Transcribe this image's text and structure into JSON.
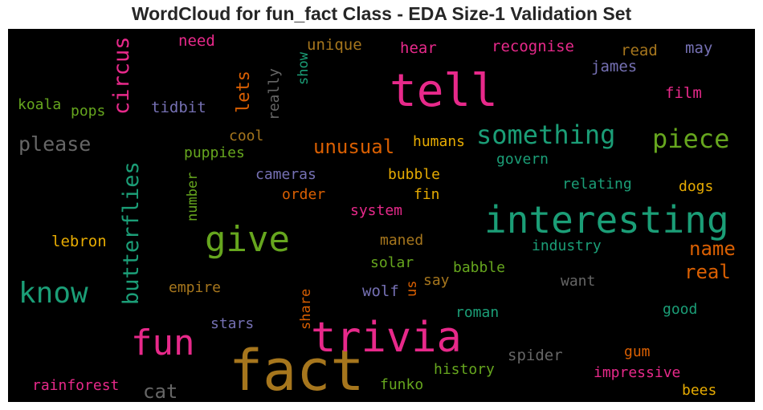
{
  "chart_data": {
    "type": "wordcloud",
    "title": "WordCloud for fun_fact Class - EDA Size-1 Validation Set",
    "background": "#000000",
    "palette": {
      "teal": "#1b9e77",
      "orange": "#d95f02",
      "purple": "#7570b3",
      "pink": "#e7298a",
      "green": "#66a61e",
      "gold": "#e6ab02",
      "brown": "#a6761d",
      "gray": "#666666"
    },
    "words": [
      {
        "text": "fact",
        "color": "#a6761d",
        "orientation": "horizontal"
      },
      {
        "text": "interesting",
        "color": "#1b9e77",
        "orientation": "horizontal"
      },
      {
        "text": "trivia",
        "color": "#e7298a",
        "orientation": "horizontal"
      },
      {
        "text": "tell",
        "color": "#e7298a",
        "orientation": "horizontal"
      },
      {
        "text": "give",
        "color": "#66a61e",
        "orientation": "horizontal"
      },
      {
        "text": "fun",
        "color": "#e7298a",
        "orientation": "horizontal"
      },
      {
        "text": "know",
        "color": "#1b9e77",
        "orientation": "horizontal"
      },
      {
        "text": "something",
        "color": "#1b9e77",
        "orientation": "horizontal"
      },
      {
        "text": "piece",
        "color": "#66a61e",
        "orientation": "horizontal"
      },
      {
        "text": "butterflies",
        "color": "#1b9e77",
        "orientation": "vertical"
      },
      {
        "text": "circus",
        "color": "#e7298a",
        "orientation": "vertical"
      },
      {
        "text": "unusual",
        "color": "#d95f02",
        "orientation": "horizontal"
      },
      {
        "text": "please",
        "color": "#666666",
        "orientation": "horizontal"
      },
      {
        "text": "name",
        "color": "#d95f02",
        "orientation": "horizontal"
      },
      {
        "text": "real",
        "color": "#d95f02",
        "orientation": "horizontal"
      },
      {
        "text": "lets",
        "color": "#d95f02",
        "orientation": "vertical"
      },
      {
        "text": "cat",
        "color": "#666666",
        "orientation": "horizontal"
      },
      {
        "text": "recognise",
        "color": "#e7298a",
        "orientation": "horizontal"
      },
      {
        "text": "unique",
        "color": "#a6761d",
        "orientation": "horizontal"
      },
      {
        "text": "hear",
        "color": "#e7298a",
        "orientation": "horizontal"
      },
      {
        "text": "need",
        "color": "#e7298a",
        "orientation": "horizontal"
      },
      {
        "text": "read",
        "color": "#a6761d",
        "orientation": "horizontal"
      },
      {
        "text": "may",
        "color": "#7570b3",
        "orientation": "horizontal"
      },
      {
        "text": "james",
        "color": "#7570b3",
        "orientation": "horizontal"
      },
      {
        "text": "film",
        "color": "#e7298a",
        "orientation": "horizontal"
      },
      {
        "text": "koala",
        "color": "#66a61e",
        "orientation": "horizontal"
      },
      {
        "text": "pops",
        "color": "#66a61e",
        "orientation": "horizontal"
      },
      {
        "text": "tidbit",
        "color": "#7570b3",
        "orientation": "horizontal"
      },
      {
        "text": "really",
        "color": "#666666",
        "orientation": "vertical"
      },
      {
        "text": "show",
        "color": "#1b9e77",
        "orientation": "vertical"
      },
      {
        "text": "cool",
        "color": "#a6761d",
        "orientation": "horizontal"
      },
      {
        "text": "puppies",
        "color": "#66a61e",
        "orientation": "horizontal"
      },
      {
        "text": "humans",
        "color": "#e6ab02",
        "orientation": "horizontal"
      },
      {
        "text": "govern",
        "color": "#1b9e77",
        "orientation": "horizontal"
      },
      {
        "text": "cameras",
        "color": "#7570b3",
        "orientation": "horizontal"
      },
      {
        "text": "bubble",
        "color": "#e6ab02",
        "orientation": "horizontal"
      },
      {
        "text": "relating",
        "color": "#1b9e77",
        "orientation": "horizontal"
      },
      {
        "text": "dogs",
        "color": "#e6ab02",
        "orientation": "horizontal"
      },
      {
        "text": "number",
        "color": "#66a61e",
        "orientation": "vertical"
      },
      {
        "text": "order",
        "color": "#d95f02",
        "orientation": "horizontal"
      },
      {
        "text": "fin",
        "color": "#e6ab02",
        "orientation": "horizontal"
      },
      {
        "text": "system",
        "color": "#e7298a",
        "orientation": "horizontal"
      },
      {
        "text": "lebron",
        "color": "#e6ab02",
        "orientation": "horizontal"
      },
      {
        "text": "maned",
        "color": "#a6761d",
        "orientation": "horizontal"
      },
      {
        "text": "industry",
        "color": "#1b9e77",
        "orientation": "horizontal"
      },
      {
        "text": "solar",
        "color": "#66a61e",
        "orientation": "horizontal"
      },
      {
        "text": "babble",
        "color": "#66a61e",
        "orientation": "horizontal"
      },
      {
        "text": "say",
        "color": "#a6761d",
        "orientation": "horizontal"
      },
      {
        "text": "empire",
        "color": "#a6761d",
        "orientation": "horizontal"
      },
      {
        "text": "wolf",
        "color": "#7570b3",
        "orientation": "horizontal"
      },
      {
        "text": "us",
        "color": "#d95f02",
        "orientation": "vertical"
      },
      {
        "text": "want",
        "color": "#666666",
        "orientation": "horizontal"
      },
      {
        "text": "share",
        "color": "#d95f02",
        "orientation": "vertical"
      },
      {
        "text": "stars",
        "color": "#7570b3",
        "orientation": "horizontal"
      },
      {
        "text": "roman",
        "color": "#1b9e77",
        "orientation": "horizontal"
      },
      {
        "text": "good",
        "color": "#1b9e77",
        "orientation": "horizontal"
      },
      {
        "text": "spider",
        "color": "#666666",
        "orientation": "horizontal"
      },
      {
        "text": "gum",
        "color": "#d95f02",
        "orientation": "horizontal"
      },
      {
        "text": "history",
        "color": "#66a61e",
        "orientation": "horizontal"
      },
      {
        "text": "impressive",
        "color": "#e7298a",
        "orientation": "horizontal"
      },
      {
        "text": "rainforest",
        "color": "#e7298a",
        "orientation": "horizontal"
      },
      {
        "text": "funko",
        "color": "#66a61e",
        "orientation": "horizontal"
      },
      {
        "text": "bees",
        "color": "#e6ab02",
        "orientation": "horizontal"
      }
    ]
  }
}
